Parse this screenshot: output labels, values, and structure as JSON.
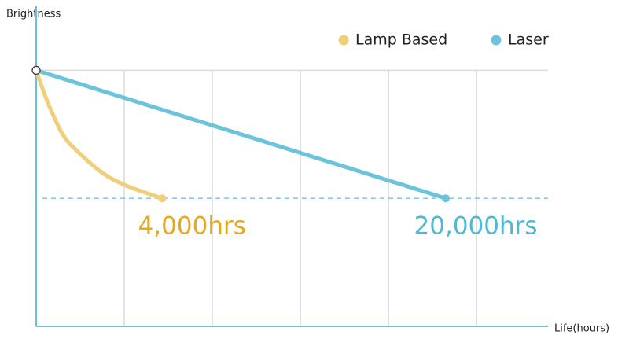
{
  "chart_data": {
    "type": "line",
    "ylabel": "Brightness",
    "xlabel": "Life(hours)",
    "series": [
      {
        "name": "Lamp Based",
        "color": "#f0cf7a",
        "x": [
          0,
          0.125,
          0.3,
          0.48,
          0.75,
          1.02,
          1.43
        ],
        "values": [
          100,
          88,
          75,
          68,
          60,
          55,
          50
        ]
      },
      {
        "name": "Laser",
        "color": "#6cc3dc",
        "x": [
          0,
          4.65
        ],
        "values": [
          100,
          50
        ]
      }
    ],
    "annotations": [
      {
        "text": "4,000hrs",
        "color": "#e8a917",
        "series": 0
      },
      {
        "text": "20,000hrs",
        "color": "#4fb8d4",
        "series": 1
      }
    ],
    "xlim": [
      0,
      5.81
    ],
    "ylim": [
      0,
      125
    ],
    "xgrid": [
      1,
      2,
      3,
      4,
      5
    ],
    "ygrid": [
      100
    ],
    "reference_line": 50,
    "legend": "top-right",
    "axis_color": "#6bbfd9"
  }
}
